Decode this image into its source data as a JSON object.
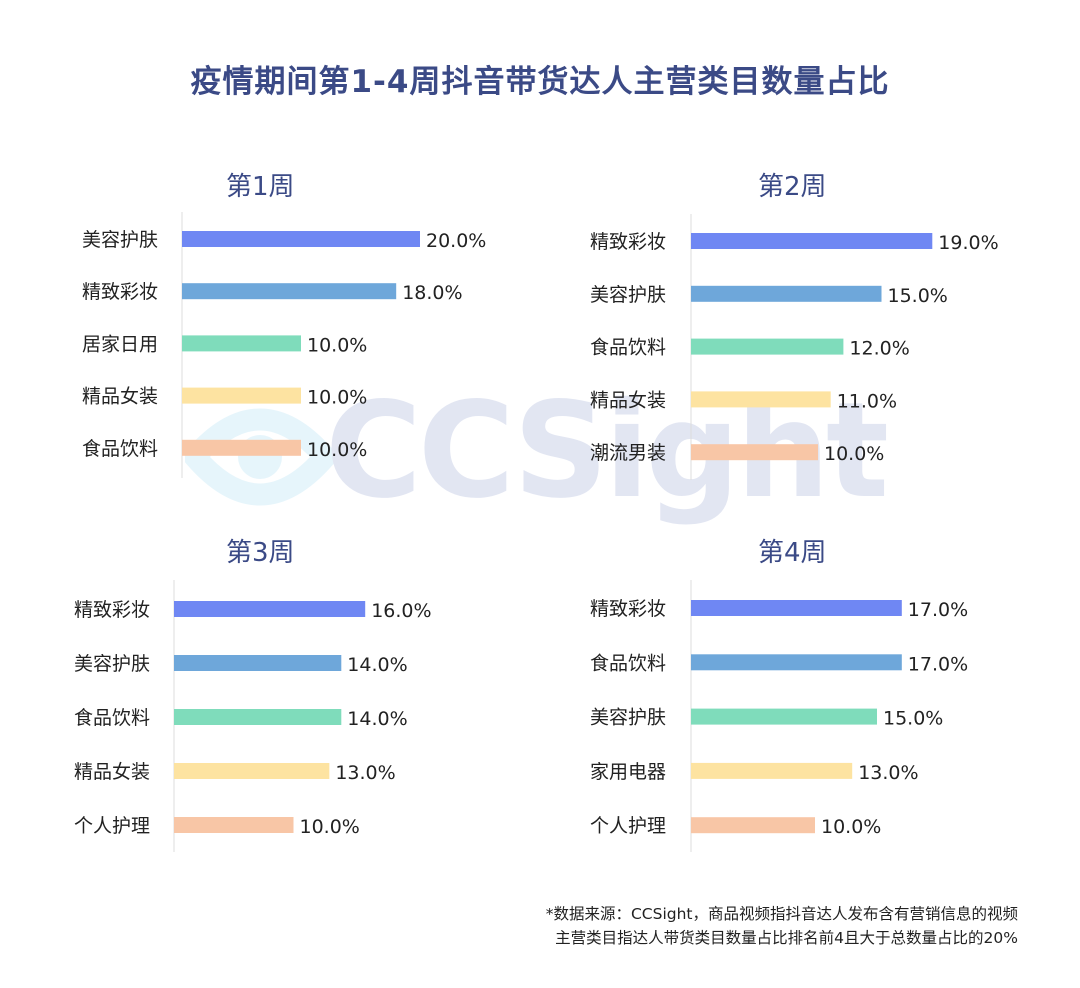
{
  "title": "疫情期间第1-4周抖音带货达人主营类目数量占比",
  "watermark": "CCSight",
  "colors": [
    "#6f87f3",
    "#6ea7da",
    "#7fdcbb",
    "#fde3a1",
    "#f8c6a6"
  ],
  "chart_data": [
    {
      "type": "bar",
      "title": "第1周",
      "categories": [
        "美容护肤",
        "精致彩妆",
        "居家日用",
        "精品女装",
        "食品饮料"
      ],
      "values": [
        20.0,
        18.0,
        10.0,
        10.0,
        10.0
      ],
      "labels": [
        "20.0%",
        "18.0%",
        "10.0%",
        "10.0%",
        "10.0%"
      ],
      "orientation": "horizontal",
      "grid": false
    },
    {
      "type": "bar",
      "title": "第2周",
      "categories": [
        "精致彩妆",
        "美容护肤",
        "食品饮料",
        "精品女装",
        "潮流男装"
      ],
      "values": [
        19.0,
        15.0,
        12.0,
        11.0,
        10.0
      ],
      "labels": [
        "19.0%",
        "15.0%",
        "12.0%",
        "11.0%",
        "10.0%"
      ],
      "orientation": "horizontal",
      "grid": false
    },
    {
      "type": "bar",
      "title": "第3周",
      "categories": [
        "精致彩妆",
        "美容护肤",
        "食品饮料",
        "精品女装",
        "个人护理"
      ],
      "values": [
        16.0,
        14.0,
        14.0,
        13.0,
        10.0
      ],
      "labels": [
        "16.0%",
        "14.0%",
        "14.0%",
        "13.0%",
        "10.0%"
      ],
      "orientation": "horizontal",
      "grid": false
    },
    {
      "type": "bar",
      "title": "第4周",
      "categories": [
        "精致彩妆",
        "食品饮料",
        "美容护肤",
        "家用电器",
        "个人护理"
      ],
      "values": [
        17.0,
        17.0,
        15.0,
        13.0,
        10.0
      ],
      "labels": [
        "17.0%",
        "17.0%",
        "15.0%",
        "13.0%",
        "10.0%"
      ],
      "orientation": "horizontal",
      "grid": false
    }
  ],
  "source": {
    "line1": "*数据来源：CCSight，商品视频指抖音达人发布含有营销信息的视频",
    "line2": "主营类目指达人带货类目数量占比排名前4且大于总数量占比的20%"
  }
}
